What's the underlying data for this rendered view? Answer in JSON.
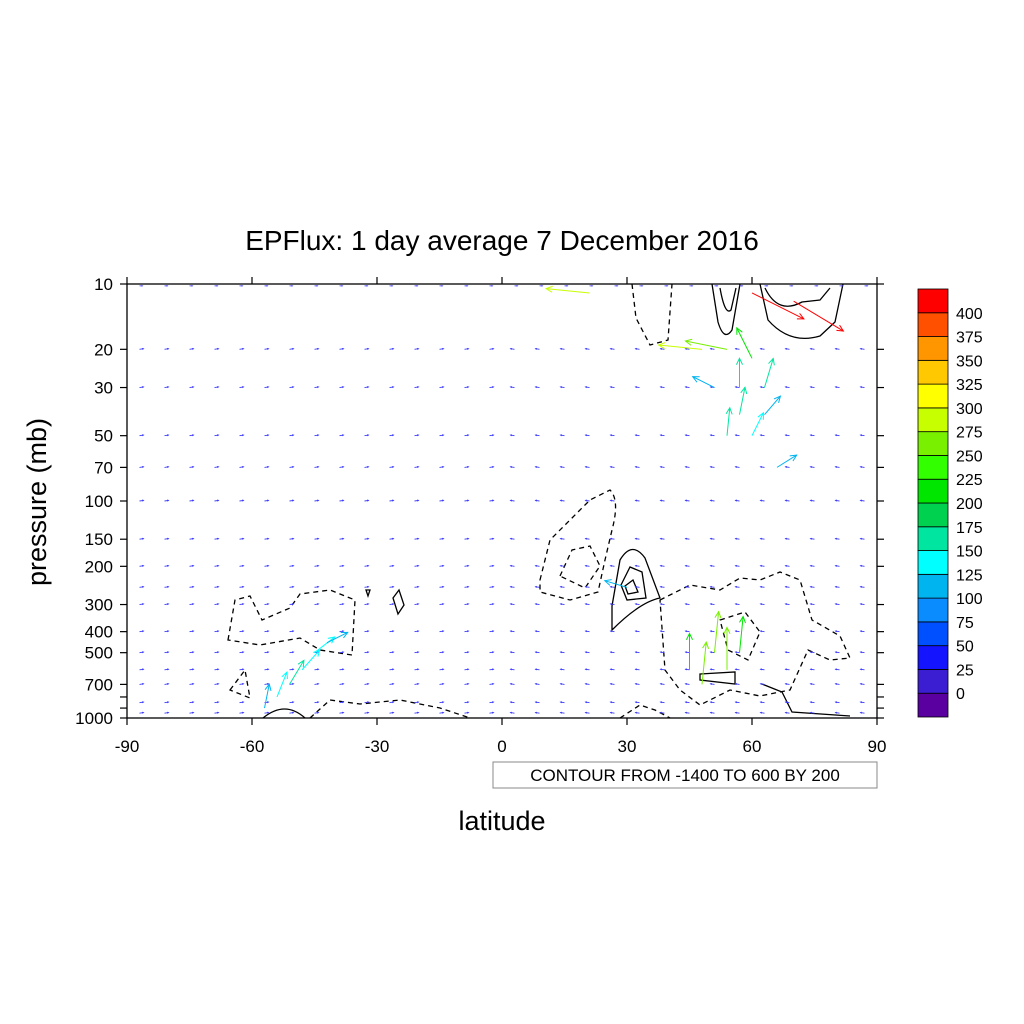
{
  "chart_data": {
    "type": "vector",
    "title": "EPFlux: 1 day average 7 December  2016",
    "xlabel": "latitude",
    "ylabel": "pressure (mb)",
    "xlim": [
      -90,
      90
    ],
    "ylim": [
      1000,
      10
    ],
    "y_scale": "log",
    "x_ticks": [
      -90,
      -60,
      -30,
      0,
      30,
      60,
      90
    ],
    "x_tick_labels": [
      "-90",
      "-60",
      "-30",
      "0",
      "30",
      "60",
      "90"
    ],
    "y_ticks": [
      10,
      20,
      30,
      50,
      70,
      100,
      150,
      200,
      300,
      400,
      500,
      700,
      1000
    ],
    "y_tick_labels": [
      "10",
      "20",
      "30",
      "50",
      "70",
      "100",
      "150",
      "200",
      "300",
      "400",
      "500",
      "700",
      "1000"
    ],
    "contour_info": "CONTOUR FROM -1400 TO 600 BY 200",
    "colorbar": {
      "labels": [
        "0",
        "25",
        "50",
        "75",
        "100",
        "125",
        "150",
        "175",
        "200",
        "225",
        "250",
        "275",
        "300",
        "325",
        "350",
        "375",
        "400"
      ],
      "colors": [
        "#5a00a0",
        "#3c1ed2",
        "#1414ff",
        "#0050ff",
        "#0a8cff",
        "#00b4f0",
        "#00ffff",
        "#00e6a0",
        "#00d250",
        "#00e600",
        "#32ff00",
        "#78f000",
        "#c8ff00",
        "#ffff00",
        "#ffc800",
        "#ff9600",
        "#ff5000",
        "#ff0000"
      ]
    },
    "vectors": [
      {
        "lat": -57,
        "p": 900,
        "u": 0.2,
        "v": 1.0,
        "mag": 120
      },
      {
        "lat": -54,
        "p": 800,
        "u": 0.4,
        "v": 1.0,
        "mag": 140
      },
      {
        "lat": -51,
        "p": 700,
        "u": 0.6,
        "v": 1.0,
        "mag": 150
      },
      {
        "lat": -48,
        "p": 600,
        "u": 0.8,
        "v": 0.9,
        "mag": 140
      },
      {
        "lat": -45,
        "p": 500,
        "u": 0.9,
        "v": 0.7,
        "mag": 130
      },
      {
        "lat": -42,
        "p": 450,
        "u": 1.0,
        "v": 0.5,
        "mag": 110
      },
      {
        "lat": 30,
        "p": 250,
        "u": -1.0,
        "v": 0.3,
        "mag": 110
      },
      {
        "lat": 45,
        "p": 600,
        "u": 0.0,
        "v": 1.0,
        "mag": 220
      },
      {
        "lat": 48,
        "p": 700,
        "u": 0.1,
        "v": 1.0,
        "mag": 270
      },
      {
        "lat": 51,
        "p": 500,
        "u": 0.1,
        "v": 1.0,
        "mag": 260
      },
      {
        "lat": 54,
        "p": 600,
        "u": 0.0,
        "v": 1.0,
        "mag": 270
      },
      {
        "lat": 57,
        "p": 500,
        "u": 0.1,
        "v": 1.0,
        "mag": 220
      },
      {
        "lat": 54,
        "p": 50,
        "u": 0.1,
        "v": 1.0,
        "mag": 150
      },
      {
        "lat": 57,
        "p": 40,
        "u": 0.2,
        "v": 1.0,
        "mag": 150
      },
      {
        "lat": 60,
        "p": 50,
        "u": 0.4,
        "v": 0.8,
        "mag": 130
      },
      {
        "lat": 63,
        "p": 40,
        "u": 0.6,
        "v": 0.7,
        "mag": 120
      },
      {
        "lat": 66,
        "p": 70,
        "u": 0.8,
        "v": 0.5,
        "mag": 110
      },
      {
        "lat": 51,
        "p": 30,
        "u": -0.8,
        "v": 0.4,
        "mag": 120
      },
      {
        "lat": 57,
        "p": 30,
        "u": 0.0,
        "v": 1.0,
        "mag": 160
      },
      {
        "lat": 63,
        "p": 30,
        "u": 0.3,
        "v": 1.0,
        "mag": 170
      },
      {
        "lat": 48,
        "p": 20,
        "u": -1.0,
        "v": 0.1,
        "mag": 280
      },
      {
        "lat": 54,
        "p": 20,
        "u": -1.0,
        "v": 0.2,
        "mag": 270
      },
      {
        "lat": 60,
        "p": 22,
        "u": -0.5,
        "v": 1.0,
        "mag": 200
      },
      {
        "lat": 21,
        "p": 11,
        "u": -1.0,
        "v": 0.1,
        "mag": 280
      },
      {
        "lat": 60,
        "p": 11,
        "u": 1.0,
        "v": -0.5,
        "mag": 400
      },
      {
        "lat": 70,
        "p": 12,
        "u": 1.0,
        "v": -0.6,
        "mag": 400
      }
    ]
  }
}
